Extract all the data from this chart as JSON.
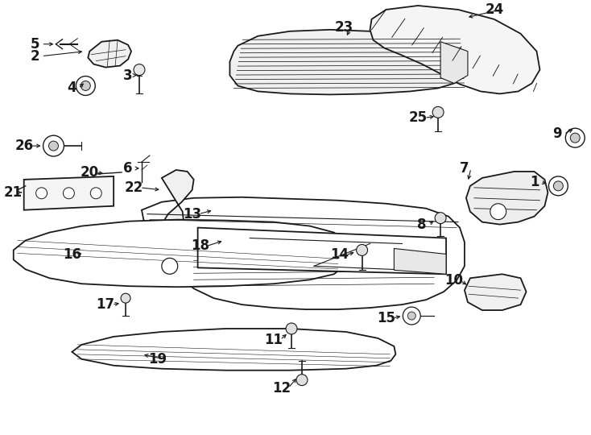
{
  "bg_color": "#ffffff",
  "line_color": "#1a1a1a",
  "figsize": [
    7.34,
    5.4
  ],
  "dpi": 100
}
